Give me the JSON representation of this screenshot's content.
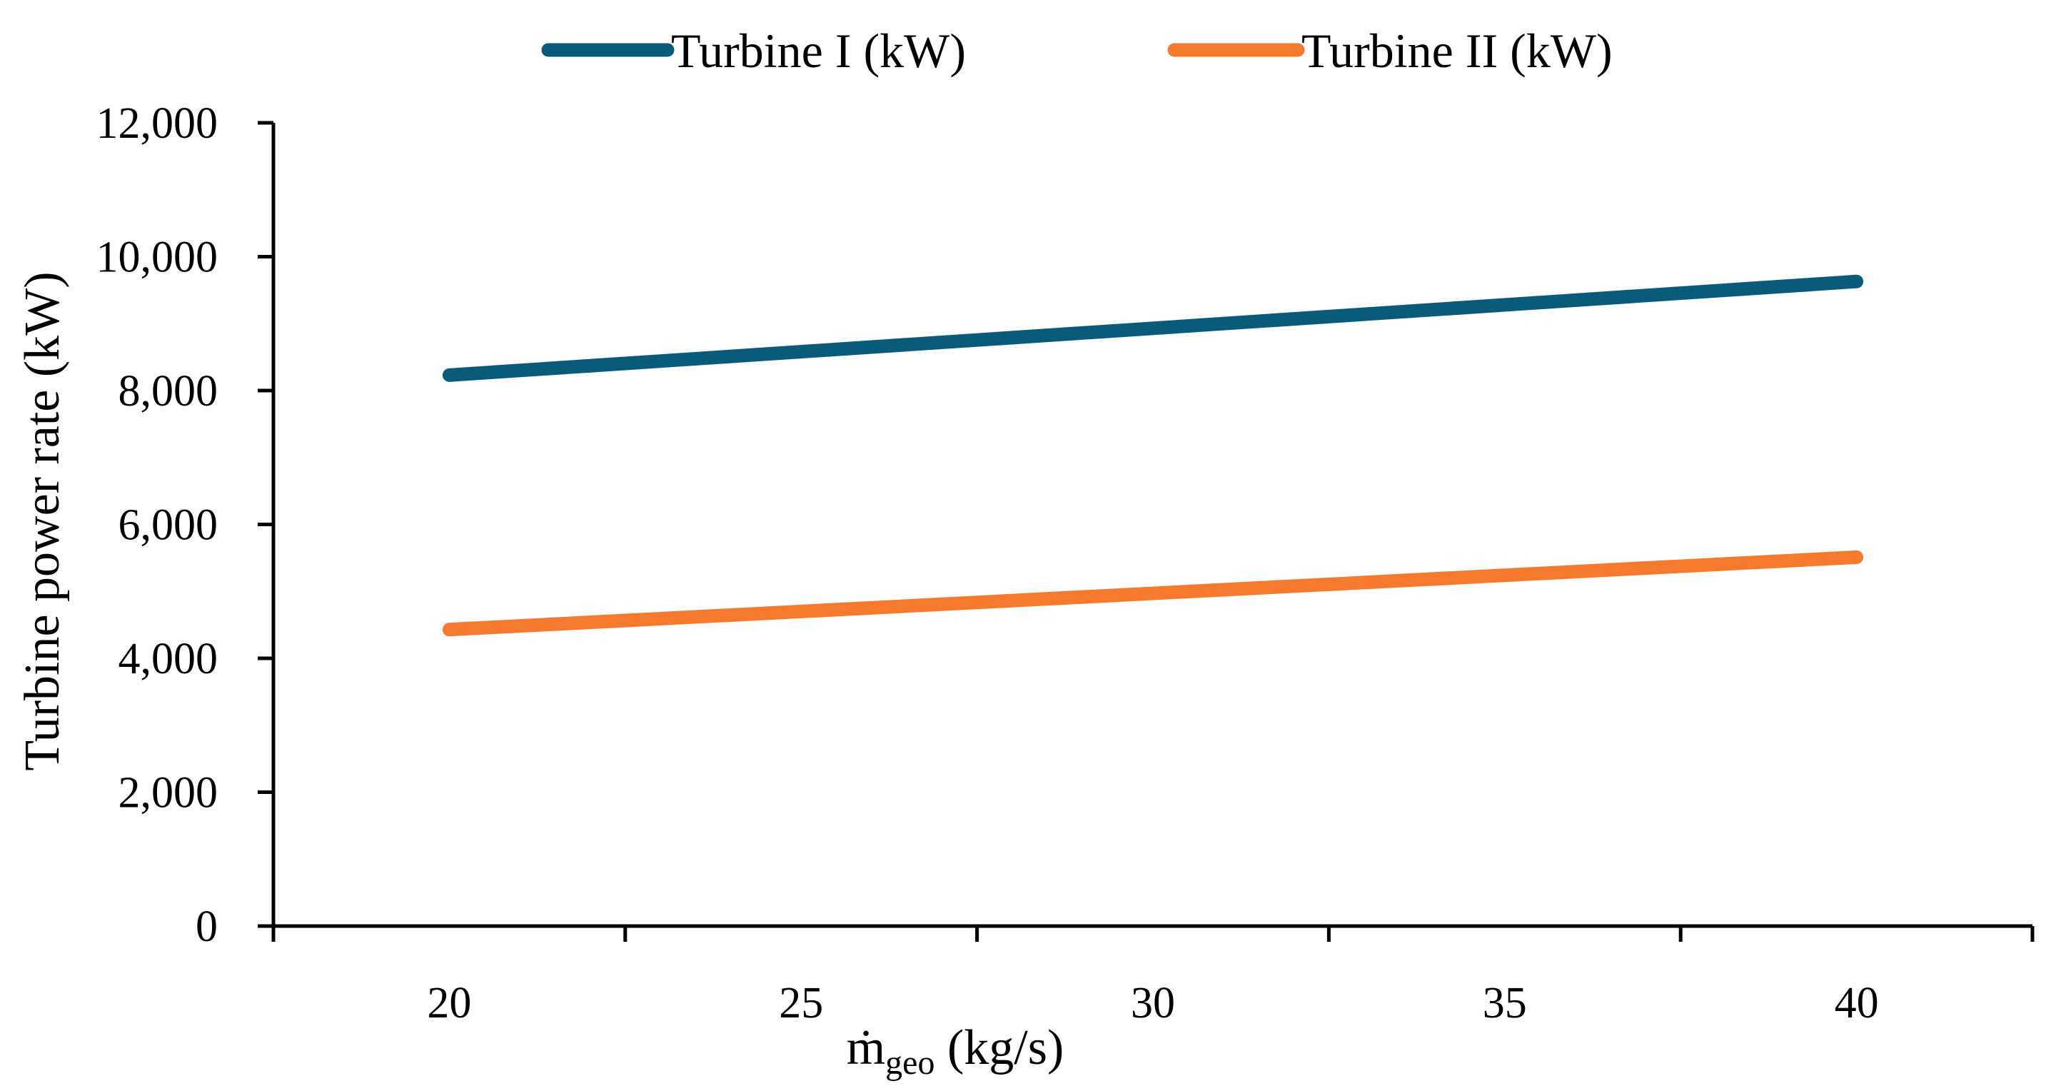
{
  "chart_data": {
    "type": "line",
    "title": "",
    "xlabel": "ṁ",
    "xlabel_subscript": "geo",
    "xlabel_unit": " (kg/s)",
    "ylabel": "Turbine power rate (kW)",
    "xlim": [
      17.5,
      42.5
    ],
    "ylim": [
      0,
      12000
    ],
    "grid": false,
    "legend_position": "top-center",
    "x_ticks": [
      {
        "value": 20,
        "label": "20"
      },
      {
        "value": 25,
        "label": "25"
      },
      {
        "value": 30,
        "label": "30"
      },
      {
        "value": 35,
        "label": "35"
      },
      {
        "value": 40,
        "label": "40"
      }
    ],
    "x_tick_marks": [
      17.5,
      22.5,
      27.5,
      32.5,
      37.5,
      42.5
    ],
    "y_ticks": [
      {
        "value": 0,
        "label": "0"
      },
      {
        "value": 2000,
        "label": "2,000"
      },
      {
        "value": 4000,
        "label": "4,000"
      },
      {
        "value": 6000,
        "label": "6,000"
      },
      {
        "value": 8000,
        "label": "8,000"
      },
      {
        "value": 10000,
        "label": "10,000"
      },
      {
        "value": 12000,
        "label": "12,000"
      }
    ],
    "series": [
      {
        "name": "Turbine I (kW)",
        "color": "#0a5a7a",
        "x": [
          20,
          40
        ],
        "values": [
          8230,
          9630
        ]
      },
      {
        "name": "Turbine II (kW)",
        "color": "#f57a2e",
        "x": [
          20,
          40
        ],
        "values": [
          4430,
          5510
        ]
      }
    ]
  }
}
